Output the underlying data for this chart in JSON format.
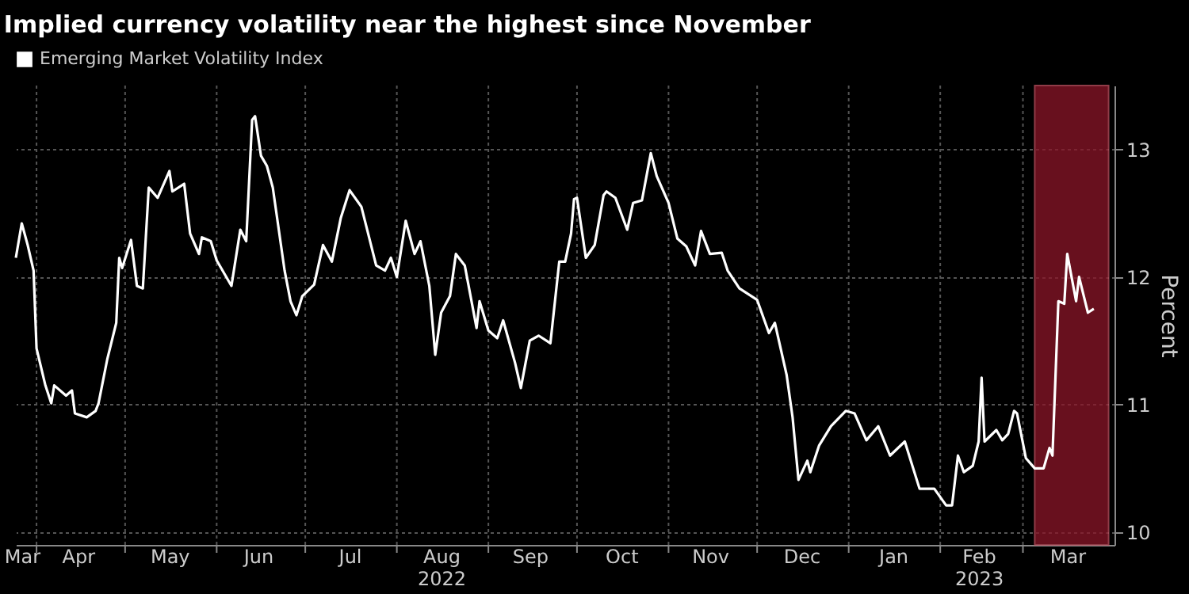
{
  "chart_data": {
    "type": "line",
    "title": "Implied currency volatility near the highest since November",
    "ylabel": "Percent",
    "x": [
      "2022-03-25",
      "2022-03-27",
      "2022-03-29",
      "2022-03-31",
      "2022-04-01",
      "2022-04-04",
      "2022-04-06",
      "2022-04-07",
      "2022-04-11",
      "2022-04-13",
      "2022-04-14",
      "2022-04-18",
      "2022-04-21",
      "2022-04-22",
      "2022-04-25",
      "2022-04-28",
      "2022-04-29",
      "2022-04-30",
      "2022-05-03",
      "2022-05-05",
      "2022-05-07",
      "2022-05-09",
      "2022-05-12",
      "2022-05-16",
      "2022-05-17",
      "2022-05-21",
      "2022-05-23",
      "2022-05-26",
      "2022-05-27",
      "2022-05-30",
      "2022-06-01",
      "2022-06-06",
      "2022-06-09",
      "2022-06-11",
      "2022-06-13",
      "2022-06-14",
      "2022-06-16",
      "2022-06-18",
      "2022-06-20",
      "2022-06-24",
      "2022-06-26",
      "2022-06-28",
      "2022-06-30",
      "2022-07-04",
      "2022-07-07",
      "2022-07-10",
      "2022-07-13",
      "2022-07-16",
      "2022-07-20",
      "2022-07-25",
      "2022-07-28",
      "2022-07-30",
      "2022-08-01",
      "2022-08-04",
      "2022-08-07",
      "2022-08-09",
      "2022-08-12",
      "2022-08-14",
      "2022-08-16",
      "2022-08-19",
      "2022-08-21",
      "2022-08-24",
      "2022-08-28",
      "2022-08-29",
      "2022-09-01",
      "2022-09-04",
      "2022-09-06",
      "2022-09-10",
      "2022-09-12",
      "2022-09-15",
      "2022-09-18",
      "2022-09-22",
      "2022-09-25",
      "2022-09-27",
      "2022-09-29",
      "2022-09-30",
      "2022-10-01",
      "2022-10-04",
      "2022-10-07",
      "2022-10-10",
      "2022-10-11",
      "2022-10-14",
      "2022-10-18",
      "2022-10-20",
      "2022-10-23",
      "2022-10-26",
      "2022-10-28",
      "2022-11-01",
      "2022-11-04",
      "2022-11-07",
      "2022-11-10",
      "2022-11-12",
      "2022-11-15",
      "2022-11-19",
      "2022-11-21",
      "2022-11-25",
      "2022-12-01",
      "2022-12-05",
      "2022-12-07",
      "2022-12-11",
      "2022-12-13",
      "2022-12-15",
      "2022-12-18",
      "2022-12-19",
      "2022-12-22",
      "2022-12-26",
      "2022-12-31",
      "2023-01-03",
      "2023-01-07",
      "2023-01-11",
      "2023-01-15",
      "2023-01-20",
      "2023-01-25",
      "2023-01-30",
      "2023-02-03",
      "2023-02-05",
      "2023-02-07",
      "2023-02-09",
      "2023-02-12",
      "2023-02-14",
      "2023-02-15",
      "2023-02-16",
      "2023-02-20",
      "2023-02-22",
      "2023-02-24",
      "2023-02-26",
      "2023-02-27",
      "2023-03-02",
      "2023-03-05",
      "2023-03-08",
      "2023-03-10",
      "2023-03-11",
      "2023-03-13",
      "2023-03-15",
      "2023-03-16",
      "2023-03-19",
      "2023-03-20",
      "2023-03-23",
      "2023-03-25"
    ],
    "series": [
      {
        "name": "Emerging Market Volatility Index",
        "color": "#ffffff",
        "values": [
          12.15,
          12.42,
          12.25,
          12.05,
          11.44,
          11.15,
          11.01,
          11.15,
          11.07,
          11.11,
          10.93,
          10.9,
          10.95,
          11.01,
          11.36,
          11.64,
          12.15,
          12.07,
          12.29,
          11.93,
          11.91,
          12.7,
          12.62,
          12.83,
          12.67,
          12.73,
          12.34,
          12.18,
          12.31,
          12.28,
          12.13,
          11.93,
          12.37,
          12.28,
          13.23,
          13.26,
          12.95,
          12.87,
          12.7,
          12.05,
          11.81,
          11.7,
          11.85,
          11.94,
          12.25,
          12.12,
          12.46,
          12.68,
          12.55,
          12.09,
          12.05,
          12.15,
          12.0,
          12.44,
          12.18,
          12.28,
          11.93,
          11.39,
          11.72,
          11.85,
          12.18,
          12.09,
          11.6,
          11.81,
          11.58,
          11.52,
          11.66,
          11.33,
          11.13,
          11.5,
          11.54,
          11.48,
          12.12,
          12.12,
          12.34,
          12.61,
          12.62,
          12.15,
          12.25,
          12.64,
          12.67,
          12.62,
          12.37,
          12.58,
          12.6,
          12.97,
          12.79,
          12.58,
          12.3,
          12.24,
          12.09,
          12.36,
          12.18,
          12.19,
          12.05,
          11.91,
          11.82,
          11.56,
          11.64,
          11.23,
          10.9,
          10.41,
          10.56,
          10.47,
          10.68,
          10.83,
          10.95,
          10.93,
          10.72,
          10.83,
          10.6,
          10.71,
          10.34,
          10.34,
          10.21,
          10.21,
          10.6,
          10.47,
          10.52,
          10.71,
          11.21,
          10.71,
          10.8,
          10.72,
          10.77,
          10.95,
          10.93,
          10.58,
          10.5,
          10.5,
          10.66,
          10.6,
          11.81,
          11.79,
          12.18,
          11.81,
          12.0,
          11.72,
          11.75
        ]
      }
    ],
    "xlim": [
      "2022-03-25",
      "2023-04-01"
    ],
    "xticks": [
      {
        "value": "2022-04-01",
        "label": null
      },
      {
        "value": "2022-05-01",
        "label": null
      },
      {
        "value": "2022-06-01",
        "label": null
      },
      {
        "value": "2022-07-01",
        "label": null
      },
      {
        "value": "2022-08-01",
        "label": null
      },
      {
        "value": "2022-09-01",
        "label": null
      },
      {
        "value": "2022-10-01",
        "label": null
      },
      {
        "value": "2022-11-01",
        "label": null
      },
      {
        "value": "2022-12-01",
        "label": null
      },
      {
        "value": "2023-01-01",
        "label": null
      },
      {
        "value": "2023-02-01",
        "label": null
      },
      {
        "value": "2023-03-01",
        "label": null
      },
      {
        "value": "2022-03-27",
        "label": "Mar"
      },
      {
        "value": "2022-04-15",
        "label": "Apr"
      },
      {
        "value": "2022-05-16",
        "label": "May"
      },
      {
        "value": "2022-06-15",
        "label": "Jun"
      },
      {
        "value": "2022-07-16",
        "label": "Jul"
      },
      {
        "value": "2022-08-16",
        "label": "Aug\n2022"
      },
      {
        "value": "2022-09-15",
        "label": "Sep"
      },
      {
        "value": "2022-10-16",
        "label": "Oct"
      },
      {
        "value": "2022-11-15",
        "label": "Nov"
      },
      {
        "value": "2022-12-16",
        "label": "Dec"
      },
      {
        "value": "2023-01-16",
        "label": "Jan"
      },
      {
        "value": "2023-02-14",
        "label": "Feb\n2023"
      },
      {
        "value": "2023-03-16",
        "label": "Mar"
      }
    ],
    "ylim": [
      9.9,
      13.5
    ],
    "yticks": [
      10,
      11,
      12,
      13
    ],
    "bands": [
      {
        "axis": "x",
        "from": "2023-03-05",
        "to": "2023-03-30",
        "color": "#8b1628"
      }
    ],
    "grid": true,
    "legend": "top left",
    "marker": "none",
    "line_style": "solid"
  }
}
